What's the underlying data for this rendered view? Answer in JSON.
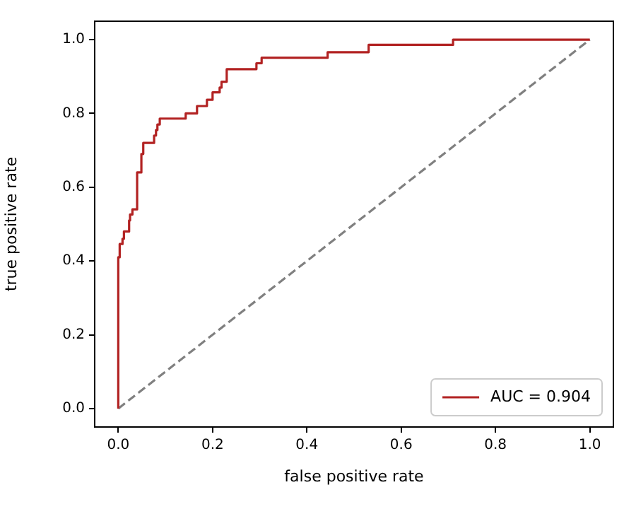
{
  "chart_data": {
    "type": "step",
    "xlabel": "false positive rate",
    "ylabel": "true positive rate",
    "xlim": [
      -0.05,
      1.05
    ],
    "ylim": [
      -0.05,
      1.05
    ],
    "xticks": [
      {
        "value": 0,
        "label": "0.0"
      },
      {
        "value": 0.2,
        "label": "0.2"
      },
      {
        "value": 0.4,
        "label": "0.4"
      },
      {
        "value": 0.6,
        "label": "0.6"
      },
      {
        "value": 0.8,
        "label": "0.8"
      },
      {
        "value": 1,
        "label": "1.0"
      }
    ],
    "yticks": [
      {
        "value": 0,
        "label": "0.0"
      },
      {
        "value": 0.2,
        "label": "0.2"
      },
      {
        "value": 0.4,
        "label": "0.4"
      },
      {
        "value": 0.6,
        "label": "0.6"
      },
      {
        "value": 0.8,
        "label": "0.8"
      },
      {
        "value": 1,
        "label": "1.0"
      }
    ],
    "grid": false,
    "legend": "bottom right",
    "marker": "none",
    "series": [
      {
        "name": "AUC = 0.904",
        "color": "#b22222",
        "line_style": "solid",
        "x": [
          0,
          0,
          0.003,
          0.009,
          0.012,
          0.023,
          0.025,
          0.03,
          0.04,
          0.04,
          0.049,
          0.053,
          0.076,
          0.08,
          0.083,
          0.088,
          0.143,
          0.167,
          0.188,
          0.2,
          0.215,
          0.219,
          0.23,
          0.293,
          0.304,
          0.444,
          0.531,
          0.71,
          0.839,
          1
        ],
        "values": [
          0,
          0.12,
          0.41,
          0.446,
          0.46,
          0.48,
          0.51,
          0.526,
          0.54,
          0.626,
          0.64,
          0.69,
          0.72,
          0.74,
          0.755,
          0.77,
          0.786,
          0.8,
          0.82,
          0.837,
          0.857,
          0.87,
          0.886,
          0.92,
          0.936,
          0.951,
          0.966,
          0.986,
          1,
          1
        ]
      },
      {
        "type": "line",
        "color": "#808080",
        "line_style": "dashed",
        "x": [
          0,
          1
        ],
        "values": [
          0,
          1
        ]
      }
    ]
  }
}
